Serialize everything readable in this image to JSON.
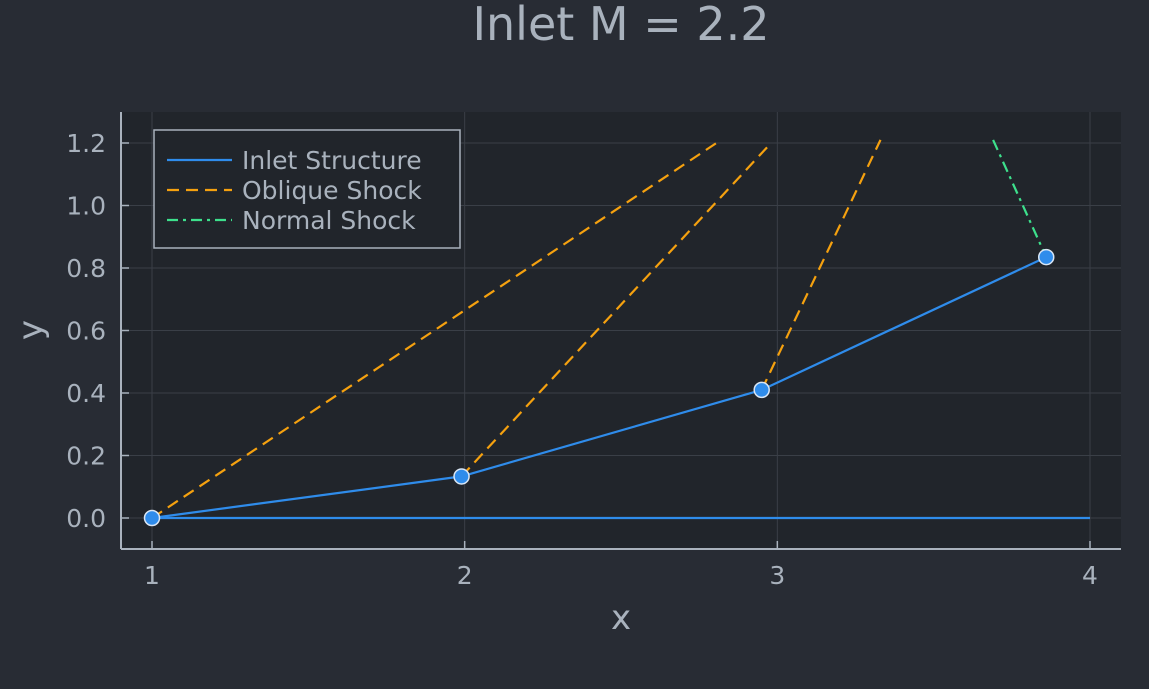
{
  "chart_data": {
    "type": "line",
    "title": "Inlet M = 2.2",
    "xlabel": "x",
    "ylabel": "y",
    "xlim": [
      0.9,
      4.1
    ],
    "ylim": [
      -0.1,
      1.3
    ],
    "x_ticks": [
      1,
      2,
      3,
      4
    ],
    "x_tick_labels": [
      "1",
      "2",
      "3",
      "4"
    ],
    "y_ticks": [
      0.0,
      0.2,
      0.4,
      0.6,
      0.8,
      1.0,
      1.2
    ],
    "y_tick_labels": [
      "0.0",
      "0.2",
      "0.4",
      "0.6",
      "0.8",
      "1.0",
      "1.2"
    ],
    "grid": true,
    "legend_position": "top-left",
    "series": [
      {
        "name": "Inlet Structure",
        "style": "solid",
        "color": "#2f8ceb",
        "segments": [
          [
            [
              1.0,
              0.0
            ],
            [
              1.99,
              0.133
            ],
            [
              2.95,
              0.41
            ],
            [
              3.86,
              0.835
            ]
          ],
          [
            [
              1.0,
              0.0
            ],
            [
              4.0,
              0.0
            ]
          ]
        ],
        "markers": [
          [
            1.0,
            0.0
          ],
          [
            1.99,
            0.133
          ],
          [
            2.95,
            0.41
          ],
          [
            3.86,
            0.835
          ]
        ]
      },
      {
        "name": "Oblique Shock",
        "style": "dashed",
        "color": "#f5a10f",
        "segments": [
          [
            [
              1.0,
              0.0
            ],
            [
              2.82,
              1.21
            ]
          ],
          [
            [
              1.99,
              0.133
            ],
            [
              2.98,
              1.2
            ]
          ],
          [
            [
              2.95,
              0.41
            ],
            [
              3.33,
              1.21
            ]
          ]
        ]
      },
      {
        "name": "Normal Shock",
        "style": "dashdot",
        "color": "#3de08c",
        "segments": [
          [
            [
              3.69,
              1.21
            ],
            [
              3.86,
              0.835
            ]
          ]
        ]
      }
    ],
    "colors": {
      "background": "#282c34",
      "plot_background": "#21252b",
      "grid": "#3a3f47",
      "axis": "#a9b2bd",
      "text": "#a9b2bd",
      "marker_fill": "#2f8ceb",
      "marker_stroke": "#d9e6f5"
    }
  }
}
